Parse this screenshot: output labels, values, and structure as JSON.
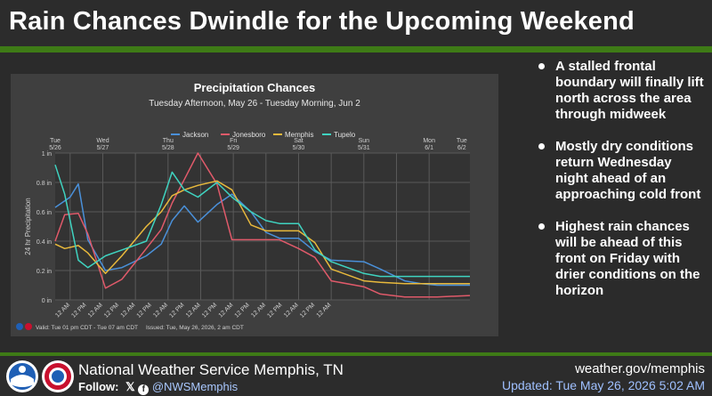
{
  "header": {
    "title": "Rain Chances Dwindle for the Upcoming Weekend"
  },
  "bullets": [
    "A stalled frontal boundary will finally lift north across the area through midweek",
    "Mostly dry conditions return Wednesday night ahead of an approaching cold front",
    "Highest rain chances will be ahead of this front on Friday with drier conditions on the horizon"
  ],
  "footer": {
    "office": "National Weather Service Memphis, TN",
    "follow_label": "Follow:",
    "handle": "@NWSMemphis",
    "site": "weather.gov/memphis",
    "updated": "Updated: Tue May 26, 2026 5:02 AM"
  },
  "colors": {
    "green_bar": "#3e7b16",
    "Jackson": "#4a90d9",
    "Jonesboro": "#e05a6a",
    "Memphis": "#e8b93c",
    "Tupelo": "#3fd3c0"
  },
  "chart_data": {
    "type": "line",
    "title": "Precipitation Chances",
    "subtitle": "Tuesday Afternoon, May 26 - Tuesday Morning, Jun 2",
    "ylabel": "24 hr Precipitation",
    "ylim": [
      0,
      1
    ],
    "yticks": [
      "0 in",
      "0.2 in",
      "0.4 in",
      "0.6 in",
      "0.8 in",
      "1 in"
    ],
    "grid": true,
    "legend": "top-center",
    "day_labels": [
      {
        "day": "Tue",
        "date": "5/26",
        "hour": 13
      },
      {
        "day": "Wed",
        "date": "5/27",
        "hour": 48
      },
      {
        "day": "Thu",
        "date": "5/28",
        "hour": 96
      },
      {
        "day": "Fri",
        "date": "5/29",
        "hour": 144
      },
      {
        "day": "Sat",
        "date": "5/30",
        "hour": 192
      },
      {
        "day": "Sun",
        "date": "5/31",
        "hour": 240
      },
      {
        "day": "Mon",
        "date": "6/1",
        "hour": 288
      },
      {
        "day": "Tue",
        "date": "6/2",
        "hour": 312
      }
    ],
    "xticks": [
      {
        "label": "12 AM",
        "hour": 24
      },
      {
        "label": "12 PM",
        "hour": 36
      },
      {
        "label": "12 AM",
        "hour": 48
      },
      {
        "label": "12 PM",
        "hour": 60
      },
      {
        "label": "12 AM",
        "hour": 72
      },
      {
        "label": "12 PM",
        "hour": 84
      },
      {
        "label": "12 AM",
        "hour": 96
      },
      {
        "label": "12 PM",
        "hour": 108
      },
      {
        "label": "12 AM",
        "hour": 120
      },
      {
        "label": "12 PM",
        "hour": 132
      },
      {
        "label": "12 AM",
        "hour": 144
      },
      {
        "label": "12 PM",
        "hour": 156
      },
      {
        "label": "12 AM",
        "hour": 168
      },
      {
        "label": "12 PM",
        "hour": 180
      },
      {
        "label": "12 AM",
        "hour": 192
      },
      {
        "label": "12 PM",
        "hour": 204
      },
      {
        "label": "12 AM",
        "hour": 216
      }
    ],
    "xgrid_hours": [
      24,
      48,
      72,
      96,
      120,
      144,
      168,
      192,
      216,
      240,
      264,
      288
    ],
    "xlim_hours": [
      13,
      318
    ],
    "series": [
      {
        "name": "Jackson",
        "x": [
          13,
          24,
          30,
          37,
          50,
          62,
          80,
          91,
          99,
          108,
          118,
          132,
          143,
          157,
          168,
          178,
          192,
          204,
          216,
          240,
          252,
          270,
          282,
          294,
          318
        ],
        "y": [
          0.63,
          0.7,
          0.79,
          0.41,
          0.2,
          0.22,
          0.3,
          0.38,
          0.54,
          0.64,
          0.53,
          0.65,
          0.72,
          0.6,
          0.46,
          0.42,
          0.42,
          0.33,
          0.27,
          0.26,
          0.21,
          0.13,
          0.11,
          0.1,
          0.1
        ]
      },
      {
        "name": "Jonesboro",
        "x": [
          13,
          20,
          30,
          37,
          50,
          62,
          80,
          91,
          99,
          108,
          118,
          132,
          143,
          157,
          168,
          178,
          192,
          204,
          216,
          240,
          252,
          270,
          282,
          294,
          318
        ],
        "y": [
          0.4,
          0.58,
          0.59,
          0.45,
          0.08,
          0.14,
          0.35,
          0.48,
          0.66,
          0.82,
          1.0,
          0.79,
          0.41,
          0.41,
          0.41,
          0.41,
          0.35,
          0.29,
          0.13,
          0.09,
          0.04,
          0.02,
          0.02,
          0.02,
          0.03
        ]
      },
      {
        "name": "Memphis",
        "x": [
          13,
          20,
          30,
          37,
          50,
          62,
          80,
          91,
          99,
          108,
          118,
          132,
          143,
          157,
          168,
          178,
          192,
          204,
          216,
          240,
          252,
          270,
          282,
          294,
          318
        ],
        "y": [
          0.38,
          0.35,
          0.37,
          0.32,
          0.18,
          0.3,
          0.5,
          0.6,
          0.71,
          0.75,
          0.78,
          0.81,
          0.75,
          0.51,
          0.47,
          0.47,
          0.47,
          0.39,
          0.21,
          0.13,
          0.12,
          0.11,
          0.11,
          0.11,
          0.11
        ]
      },
      {
        "name": "Tupelo",
        "x": [
          13,
          20,
          30,
          37,
          50,
          62,
          80,
          91,
          99,
          108,
          118,
          132,
          143,
          157,
          168,
          178,
          192,
          204,
          216,
          240,
          252,
          270,
          282,
          294,
          318
        ],
        "y": [
          0.92,
          0.72,
          0.27,
          0.22,
          0.3,
          0.34,
          0.4,
          0.65,
          0.87,
          0.75,
          0.7,
          0.8,
          0.7,
          0.6,
          0.54,
          0.52,
          0.52,
          0.34,
          0.26,
          0.18,
          0.16,
          0.16,
          0.16,
          0.16,
          0.16
        ]
      }
    ],
    "valid_text": "Valid: Tue 01 pm CDT - Tue 07 am CDT",
    "issued_text": "Issued: Tue, May 26, 2026, 2 am CDT"
  }
}
